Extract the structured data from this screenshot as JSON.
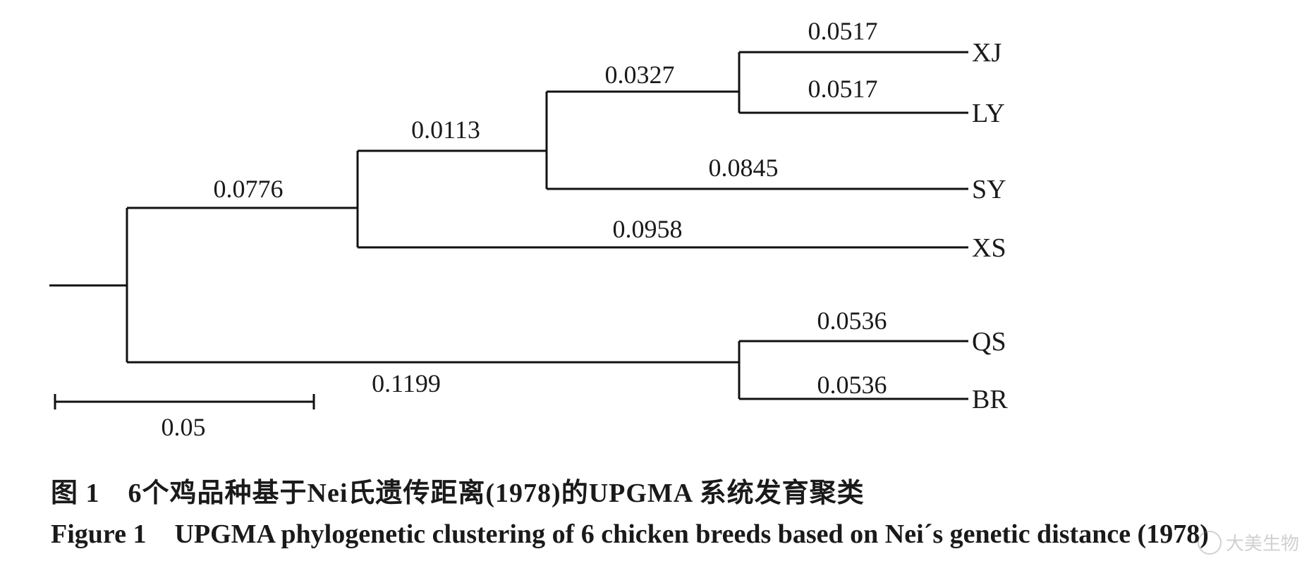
{
  "tree": {
    "leaves": [
      {
        "name": "XJ",
        "branch": "0.0517"
      },
      {
        "name": "LY",
        "branch": "0.0517"
      },
      {
        "name": "SY",
        "branch": "0.0845"
      },
      {
        "name": "XS",
        "branch": "0.0958"
      },
      {
        "name": "QS",
        "branch": "0.0536"
      },
      {
        "name": "BR",
        "branch": "0.0536"
      }
    ],
    "internal_branches": {
      "xj_ly_clade": "0.0327",
      "xj_ly_sy_clade": "0.0113",
      "xj_ly_sy_xs_clade": "0.0776",
      "qs_br_clade": "0.1199"
    },
    "scale_bar": "0.05"
  },
  "caption": {
    "cn_label": "图 1",
    "cn_text": "6个鸡品种基于Nei氏遗传距离(1978)的UPGMA 系统发育聚类",
    "en_label": "Figure 1",
    "en_text": "UPGMA phylogenetic clustering of 6 chicken breeds based on Nei´s genetic distance (1978)"
  },
  "watermark": "大美生物"
}
